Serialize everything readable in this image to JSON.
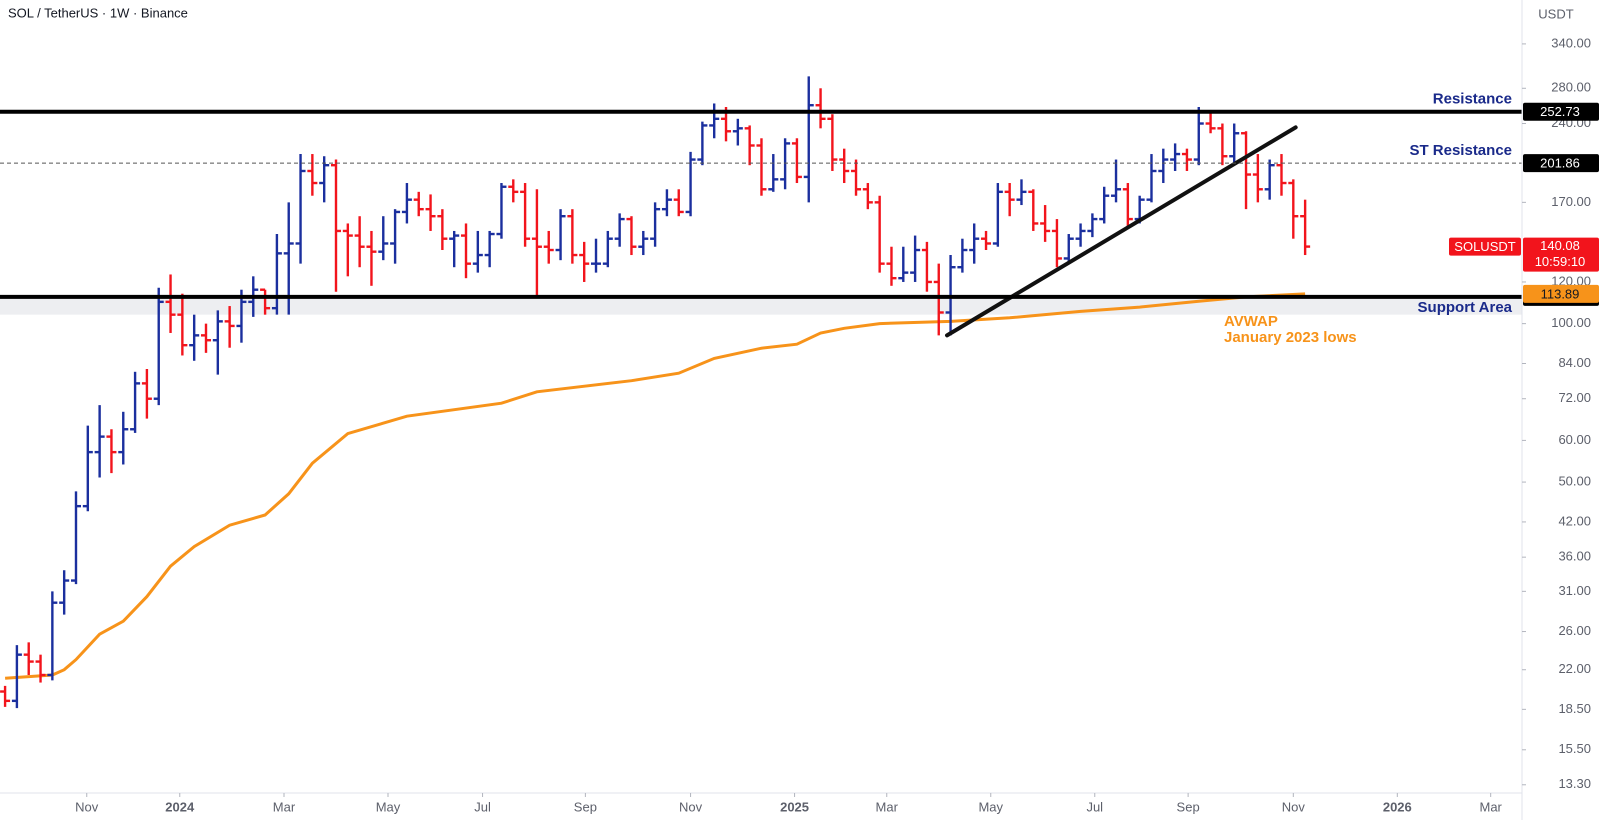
{
  "chart_data": {
    "type": "ohlc",
    "title": "SOL / TetherUS · 1W · Binance",
    "currency": "USDT",
    "symbol": "SOLUSDT",
    "countdown": "10:59:10",
    "log_scale": true,
    "grid": false,
    "up_color": "#1b2f9e",
    "down_color": "#f2141c",
    "ylim": [
      12.83,
      412
    ],
    "yticks": [
      {
        "value": 340,
        "label": "340.00"
      },
      {
        "value": 280,
        "label": "280.00"
      },
      {
        "value": 240,
        "label": "240.00"
      },
      {
        "value": 170,
        "label": "170.00"
      },
      {
        "value": 120,
        "label": "120.00"
      },
      {
        "value": 100,
        "label": "100.00"
      },
      {
        "value": 84,
        "label": "84.00"
      },
      {
        "value": 72,
        "label": "72.00"
      },
      {
        "value": 60,
        "label": "60.00"
      },
      {
        "value": 50,
        "label": "50.00"
      },
      {
        "value": 42,
        "label": "42.00"
      },
      {
        "value": 36,
        "label": "36.00"
      },
      {
        "value": 31,
        "label": "31.00"
      },
      {
        "value": 26,
        "label": "26.00"
      },
      {
        "value": 22,
        "label": "22.00"
      },
      {
        "value": 18.5,
        "label": "18.50"
      },
      {
        "value": 15.5,
        "label": "15.50"
      },
      {
        "value": 13.3,
        "label": "13.30"
      }
    ],
    "xlim": [
      -0.43,
      128.35
    ],
    "xticks": [
      {
        "value": 6.91,
        "label": "Nov"
      },
      {
        "value": 14.78,
        "label": "2024"
      },
      {
        "value": 23.6,
        "label": "Mar"
      },
      {
        "value": 32.4,
        "label": "May"
      },
      {
        "value": 40.4,
        "label": "Jul"
      },
      {
        "value": 49.1,
        "label": "Sep"
      },
      {
        "value": 58.0,
        "label": "Nov"
      },
      {
        "value": 66.8,
        "label": "2025"
      },
      {
        "value": 74.6,
        "label": "Mar"
      },
      {
        "value": 83.4,
        "label": "May"
      },
      {
        "value": 92.2,
        "label": "Jul"
      },
      {
        "value": 100.1,
        "label": "Sep"
      },
      {
        "value": 109.0,
        "label": "Nov"
      },
      {
        "value": 117.8,
        "label": "2026"
      },
      {
        "value": 125.7,
        "label": "Mar"
      }
    ],
    "ohlc": {
      "open": [
        20,
        19.2,
        23.5,
        22.8,
        21.5,
        29.5,
        32.5,
        45,
        57,
        61,
        57,
        63,
        77,
        72,
        110,
        104,
        91,
        95,
        93,
        101,
        99,
        110,
        116,
        107,
        136,
        142,
        195,
        185,
        200,
        150,
        147,
        140,
        137,
        142,
        163,
        172,
        165,
        160,
        145,
        147,
        130,
        135,
        148,
        182,
        178,
        145,
        140,
        138,
        160,
        135,
        130,
        130,
        145,
        158,
        140,
        145,
        165,
        172,
        163,
        205,
        238,
        245,
        232,
        235,
        218,
        180,
        188,
        220,
        190,
        260,
        245,
        205,
        195,
        180,
        170,
        130,
        122,
        125,
        138,
        120,
        105,
        128,
        138,
        145,
        142,
        178,
        172,
        178,
        155,
        150,
        133,
        145,
        150,
        158,
        175,
        180,
        158,
        172,
        195,
        205,
        210,
        205,
        240,
        235,
        208,
        230,
        192,
        180,
        200,
        185,
        160
      ],
      "high": [
        20.5,
        24.5,
        24.8,
        23.5,
        31,
        34,
        48,
        64,
        70,
        63,
        68,
        81,
        82,
        117,
        124,
        114,
        104,
        100,
        106,
        108,
        116,
        123,
        116,
        148,
        170,
        210,
        210,
        208,
        205,
        155,
        160,
        150,
        160,
        165,
        185,
        178,
        176,
        165,
        150,
        155,
        150,
        150,
        185,
        188,
        185,
        180,
        150,
        165,
        165,
        143,
        145,
        150,
        162,
        160,
        150,
        170,
        180,
        180,
        212,
        242,
        262,
        258,
        245,
        238,
        225,
        210,
        225,
        225,
        295,
        280,
        250,
        215,
        205,
        185,
        175,
        140,
        140,
        147,
        143,
        130,
        135,
        145,
        155,
        150,
        185,
        185,
        188,
        180,
        168,
        158,
        148,
        155,
        162,
        182,
        205,
        185,
        175,
        210,
        215,
        220,
        215,
        258,
        252,
        240,
        240,
        232,
        210,
        205,
        210,
        188,
        172
      ],
      "low": [
        18.7,
        18.6,
        21.5,
        20.8,
        21,
        28,
        32,
        44,
        51,
        52,
        54,
        62,
        66,
        70,
        96,
        87,
        85,
        88,
        80,
        90,
        92,
        103,
        104,
        104,
        104,
        130,
        175,
        170,
        115,
        123,
        128,
        118,
        132,
        130,
        155,
        160,
        150,
        138,
        128,
        122,
        125,
        128,
        145,
        170,
        140,
        112,
        130,
        132,
        130,
        120,
        125,
        128,
        140,
        135,
        135,
        140,
        160,
        160,
        160,
        200,
        225,
        222,
        218,
        200,
        175,
        178,
        180,
        185,
        170,
        235,
        195,
        185,
        175,
        165,
        125,
        118,
        120,
        120,
        115,
        95,
        95,
        125,
        130,
        138,
        140,
        160,
        168,
        150,
        143,
        128,
        130,
        140,
        146,
        155,
        170,
        152,
        155,
        170,
        185,
        195,
        195,
        200,
        230,
        200,
        200,
        165,
        170,
        172,
        175,
        145,
        135
      ],
      "close": [
        19.2,
        23.5,
        22.8,
        21.5,
        29.5,
        32.5,
        45,
        57,
        61,
        57,
        63,
        77,
        72,
        110,
        104,
        91,
        95,
        93,
        101,
        99,
        110,
        116,
        107,
        136,
        142,
        195,
        185,
        200,
        150,
        147,
        140,
        137,
        142,
        163,
        172,
        165,
        160,
        145,
        147,
        130,
        135,
        148,
        182,
        178,
        145,
        140,
        138,
        160,
        135,
        130,
        130,
        145,
        158,
        140,
        145,
        165,
        172,
        163,
        205,
        238,
        245,
        232,
        235,
        218,
        180,
        188,
        220,
        190,
        260,
        245,
        205,
        195,
        180,
        170,
        130,
        122,
        125,
        138,
        120,
        105,
        128,
        138,
        145,
        142,
        178,
        172,
        178,
        155,
        150,
        133,
        145,
        150,
        158,
        175,
        180,
        158,
        172,
        195,
        205,
        210,
        205,
        240,
        235,
        208,
        230,
        192,
        180,
        200,
        185,
        160,
        140.08
      ]
    },
    "avwap": {
      "name": "AVWAP",
      "note": "January 2023 lows",
      "color": "#f7931a",
      "x": [
        0,
        4,
        5,
        6,
        8,
        10,
        12,
        14,
        16,
        19,
        22,
        24,
        26,
        29,
        34,
        42,
        45,
        53,
        57,
        60,
        64,
        67,
        69,
        71,
        74,
        80,
        85,
        91,
        96,
        101,
        105,
        110
      ],
      "values": [
        21.2,
        21.5,
        22,
        23,
        25.7,
        27.2,
        30.3,
        34.6,
        37.7,
        41.4,
        43.3,
        47.5,
        54.3,
        61.8,
        66.7,
        70.6,
        74.2,
        77.9,
        80.5,
        85.9,
        89.8,
        91.4,
        96,
        98,
        100,
        101,
        102.6,
        105.5,
        107.5,
        110.3,
        112.4,
        113.89
      ]
    },
    "trendline": {
      "color": "#111111",
      "x": [
        79.7,
        109.2
      ],
      "values": [
        95,
        236
      ]
    },
    "levels": [
      {
        "name": "Resistance",
        "value": 252.73,
        "color": "#000000",
        "style": "solid"
      },
      {
        "name": "ST Resistance",
        "value": 201.86,
        "color": "#000000",
        "style": "dashed"
      },
      {
        "name": "Support Area",
        "value": 112.45,
        "color": "#000000",
        "style": "solid",
        "band_low": 104
      }
    ]
  }
}
